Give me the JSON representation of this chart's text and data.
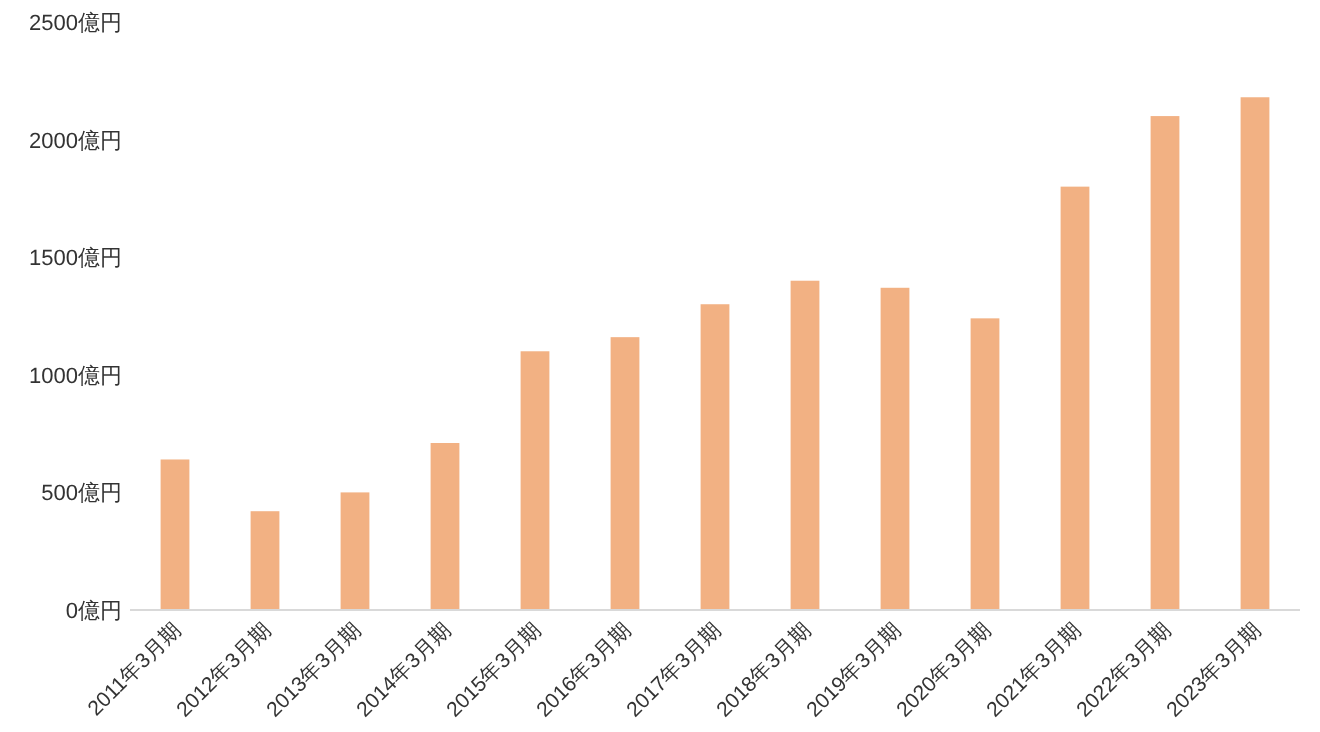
{
  "chart_data": {
    "type": "bar",
    "categories": [
      "2011年3月期",
      "2012年3月期",
      "2013年3月期",
      "2014年3月期",
      "2015年3月期",
      "2016年3月期",
      "2017年3月期",
      "2018年3月期",
      "2019年3月期",
      "2020年3月期",
      "2021年3月期",
      "2022年3月期",
      "2023年3月期"
    ],
    "values": [
      640,
      420,
      500,
      710,
      1100,
      1160,
      1300,
      1400,
      1370,
      1240,
      1800,
      2100,
      2180
    ],
    "color": "#f2b183",
    "ylim": [
      0,
      2500
    ],
    "yticks": [
      {
        "value": 0,
        "label": "0億円"
      },
      {
        "value": 500,
        "label": "500億円"
      },
      {
        "value": 1000,
        "label": "1000億円"
      },
      {
        "value": 1500,
        "label": "1500億円"
      },
      {
        "value": 2000,
        "label": "2000億円"
      },
      {
        "value": 2500,
        "label": "2500億円"
      }
    ],
    "grid": false
  }
}
